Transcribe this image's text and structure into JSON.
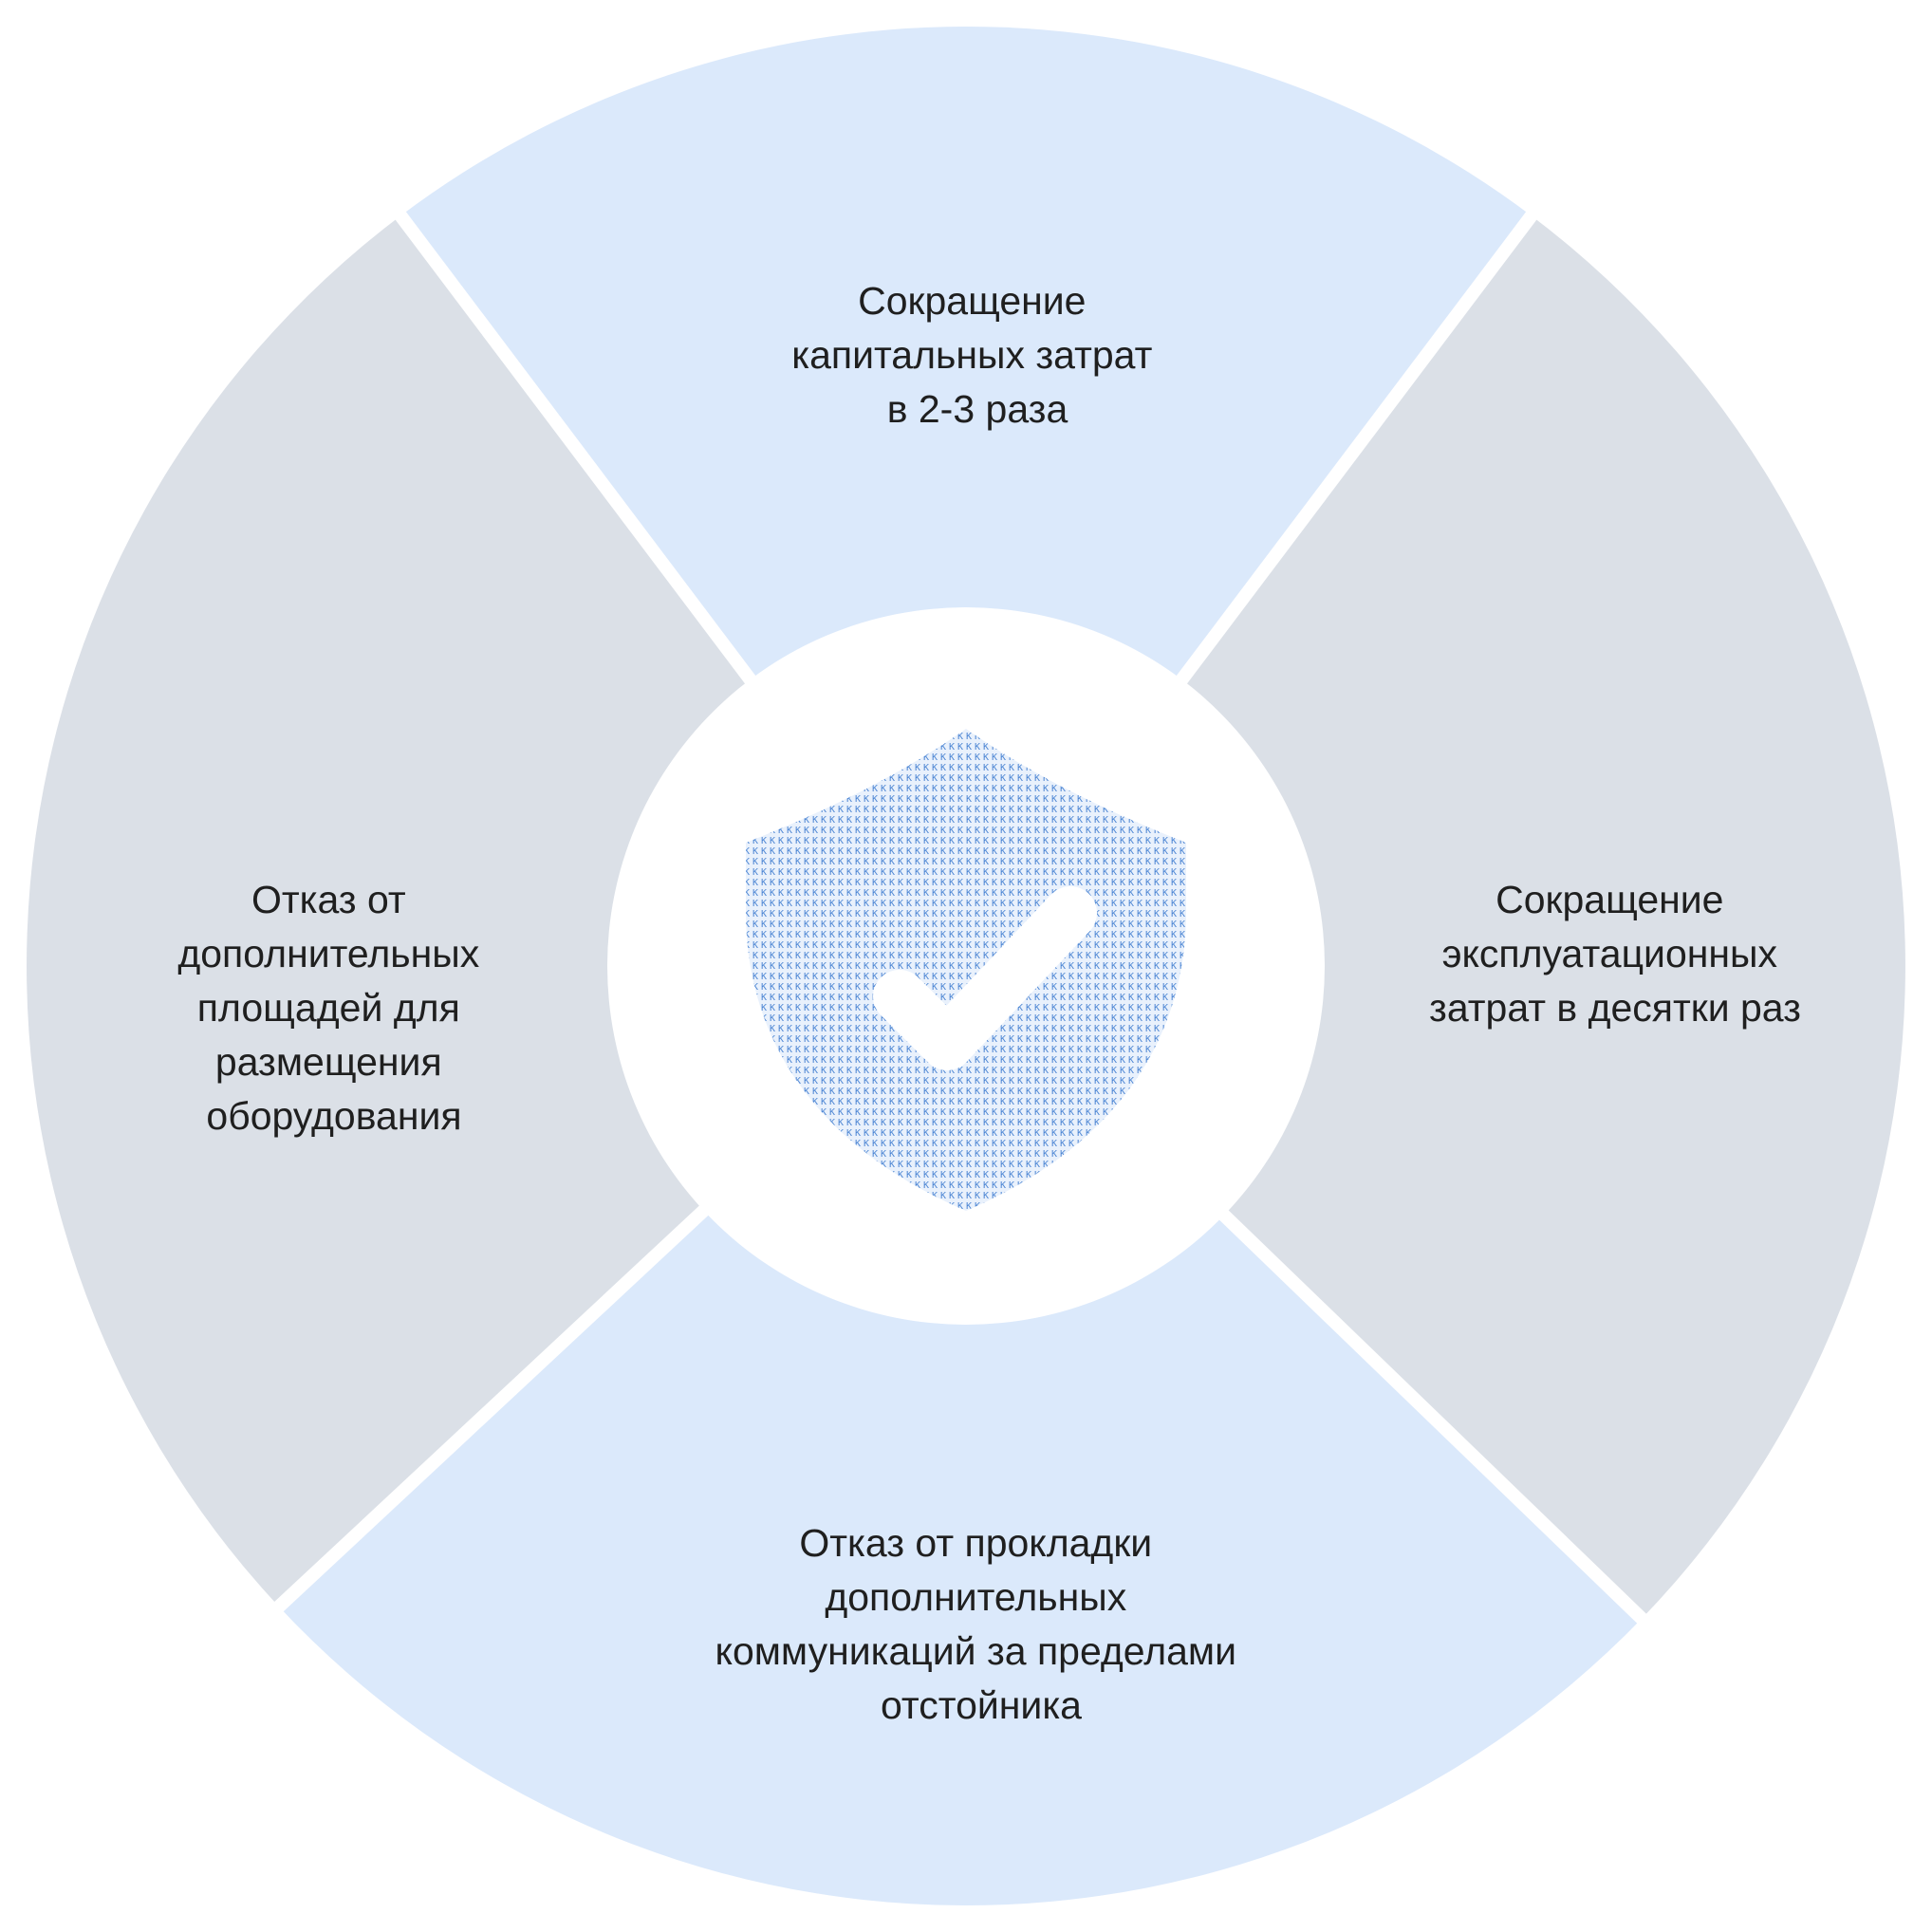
{
  "colors": {
    "segment_blue": "#dbe9fb",
    "segment_gray": "#dbe0e7",
    "center": "#ffffff",
    "shield": "#6f9fde",
    "shield_text_pattern": "#4d86d4",
    "text": "#1f1f1f"
  },
  "segments": {
    "top": {
      "lines": [
        "Сокращение",
        "капитальных затрат",
        "в 2-3 раза"
      ]
    },
    "right": {
      "lines": [
        "Сокращение",
        "эксплуатационных",
        "затрат в десятки раз"
      ]
    },
    "bottom": {
      "lines": [
        "Отказ от прокладки",
        "дополнительных",
        "коммуникаций за пределами",
        "отстойника"
      ]
    },
    "left": {
      "lines": [
        "Отказ от",
        "дополнительных",
        "площадей для",
        "размещения",
        "оборудования"
      ]
    }
  },
  "center": {
    "icon": "shield-check-icon"
  }
}
